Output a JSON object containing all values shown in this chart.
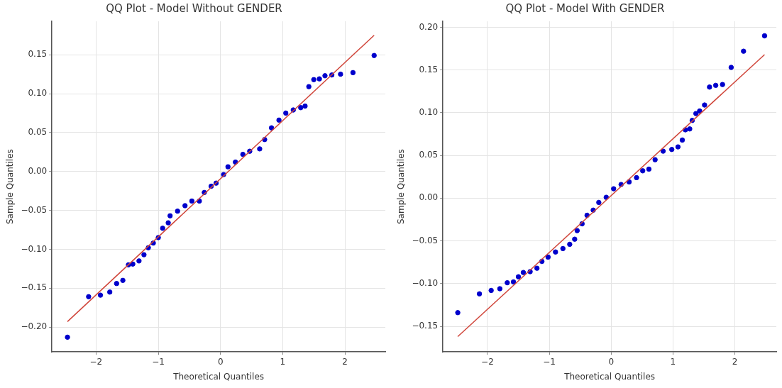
{
  "chart_data": [
    {
      "type": "scatter",
      "title": "QQ Plot - Model Without GENDER",
      "xlabel": "Theoretical Quantiles",
      "ylabel": "Sample Quantiles",
      "xlim": [
        -2.71,
        2.65
      ],
      "ylim": [
        -0.232,
        0.193
      ],
      "xticks": [
        {
          "value": -2,
          "label": "−2"
        },
        {
          "value": -1,
          "label": "−1"
        },
        {
          "value": 0,
          "label": "0"
        },
        {
          "value": 1,
          "label": "1"
        },
        {
          "value": 2,
          "label": "2"
        }
      ],
      "yticks": [
        {
          "value": -0.2,
          "label": "−0.20"
        },
        {
          "value": -0.15,
          "label": "−0.15"
        },
        {
          "value": -0.1,
          "label": "−0.10"
        },
        {
          "value": -0.05,
          "label": "−0.05"
        },
        {
          "value": 0,
          "label": "0.00"
        },
        {
          "value": 0.05,
          "label": "0.05"
        },
        {
          "value": 0.1,
          "label": "0.10"
        },
        {
          "value": 0.15,
          "label": "0.15"
        }
      ],
      "grid": true,
      "series": [
        {
          "type": "scatter",
          "marker": "circle",
          "color": "#0000cc",
          "x": [
            -2.46,
            -2.12,
            -1.93,
            -1.78,
            -1.67,
            -1.57,
            -1.48,
            -1.41,
            -1.31,
            -1.23,
            -1.16,
            -1.08,
            -1.0,
            -0.93,
            -0.84,
            -0.81,
            -0.69,
            -0.57,
            -0.46,
            -0.34,
            -0.26,
            -0.15,
            -0.07,
            0.05,
            0.12,
            0.24,
            0.36,
            0.47,
            0.63,
            0.71,
            0.82,
            0.94,
            1.05,
            1.17,
            1.29,
            1.36,
            1.42,
            1.5,
            1.59,
            1.68,
            1.79,
            1.93,
            2.13,
            2.47
          ],
          "values": [
            -0.213,
            -0.161,
            -0.159,
            -0.155,
            -0.144,
            -0.14,
            -0.12,
            -0.119,
            -0.115,
            -0.107,
            -0.098,
            -0.092,
            -0.085,
            -0.073,
            -0.066,
            -0.057,
            -0.051,
            -0.044,
            -0.038,
            -0.038,
            -0.027,
            -0.019,
            -0.015,
            -0.004,
            0.006,
            0.012,
            0.022,
            0.026,
            0.029,
            0.041,
            0.056,
            0.066,
            0.075,
            0.079,
            0.082,
            0.084,
            0.109,
            0.118,
            0.119,
            0.123,
            0.124,
            0.125,
            0.127,
            0.149
          ]
        },
        {
          "type": "line",
          "marker": "none",
          "color": "#d0453a",
          "x": [
            -2.46,
            2.47
          ],
          "values": [
            -0.193,
            0.175
          ]
        }
      ]
    },
    {
      "type": "scatter",
      "title": "QQ Plot - Model With GENDER",
      "xlabel": "Theoretical Quantiles",
      "ylabel": "Sample Quantiles",
      "xlim": [
        -2.72,
        2.67
      ],
      "ylim": [
        -0.18,
        0.207
      ],
      "xticks": [
        {
          "value": -2,
          "label": "−2"
        },
        {
          "value": -1,
          "label": "−1"
        },
        {
          "value": 0,
          "label": "0"
        },
        {
          "value": 1,
          "label": "1"
        },
        {
          "value": 2,
          "label": "2"
        }
      ],
      "yticks": [
        {
          "value": -0.15,
          "label": "−0.15"
        },
        {
          "value": -0.1,
          "label": "−0.10"
        },
        {
          "value": -0.05,
          "label": "−0.05"
        },
        {
          "value": 0,
          "label": "0.00"
        },
        {
          "value": 0.05,
          "label": "0.05"
        },
        {
          "value": 0.1,
          "label": "0.10"
        },
        {
          "value": 0.15,
          "label": "0.15"
        },
        {
          "value": 0.2,
          "label": "0.20"
        }
      ],
      "grid": true,
      "series": [
        {
          "type": "scatter",
          "marker": "circle",
          "color": "#0000cc",
          "x": [
            -2.48,
            -2.13,
            -1.94,
            -1.8,
            -1.68,
            -1.58,
            -1.5,
            -1.42,
            -1.31,
            -1.2,
            -1.12,
            -1.02,
            -0.9,
            -0.78,
            -0.67,
            -0.59,
            -0.55,
            -0.47,
            -0.39,
            -0.29,
            -0.2,
            -0.08,
            0.04,
            0.16,
            0.29,
            0.41,
            0.51,
            0.61,
            0.71,
            0.84,
            0.98,
            1.08,
            1.15,
            1.2,
            1.27,
            1.31,
            1.37,
            1.43,
            1.51,
            1.59,
            1.69,
            1.8,
            1.94,
            2.14,
            2.48
          ],
          "values": [
            -0.134,
            -0.112,
            -0.108,
            -0.106,
            -0.099,
            -0.098,
            -0.092,
            -0.087,
            -0.086,
            -0.082,
            -0.074,
            -0.069,
            -0.063,
            -0.059,
            -0.054,
            -0.048,
            -0.038,
            -0.03,
            -0.02,
            -0.014,
            -0.005,
            0.001,
            0.011,
            0.016,
            0.019,
            0.024,
            0.032,
            0.034,
            0.045,
            0.055,
            0.057,
            0.06,
            0.068,
            0.08,
            0.081,
            0.091,
            0.099,
            0.102,
            0.109,
            0.13,
            0.132,
            0.133,
            0.153,
            0.172,
            0.19
          ]
        },
        {
          "type": "line",
          "marker": "none",
          "color": "#d0453a",
          "x": [
            -2.48,
            2.48
          ],
          "values": [
            -0.162,
            0.168
          ]
        }
      ]
    }
  ]
}
